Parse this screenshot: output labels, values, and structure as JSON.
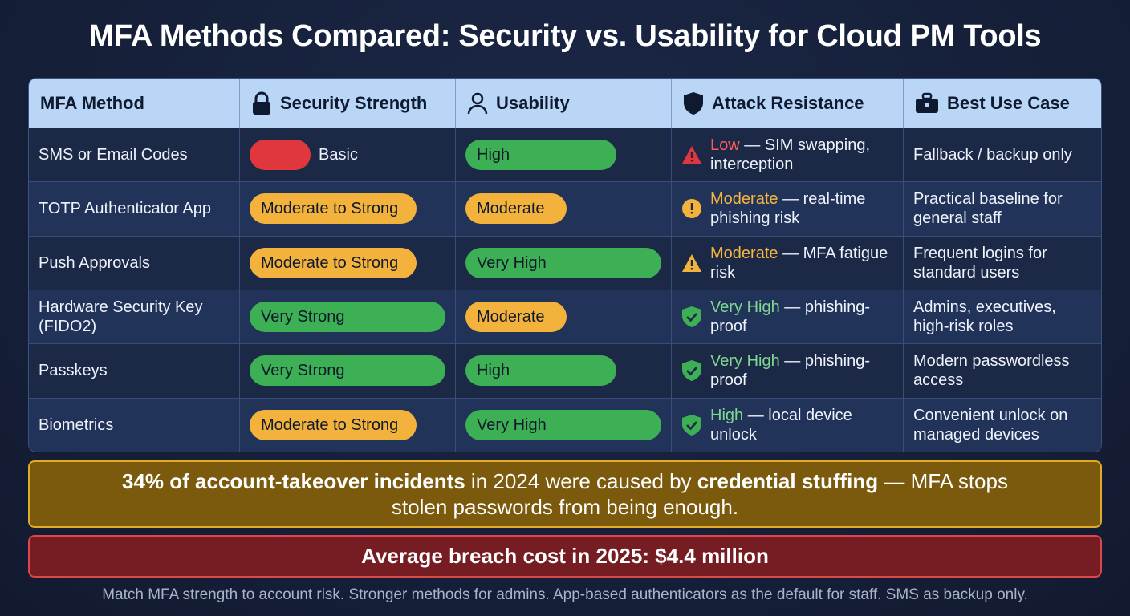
{
  "title": "MFA Methods Compared: Security vs. Usability for Cloud PM Tools",
  "table": {
    "headers": [
      "MFA Method",
      "Security Strength",
      "Usability",
      "Attack Resistance",
      "Best Use Case"
    ],
    "rows": [
      {
        "method": "SMS or Email Codes",
        "security": "Basic",
        "usability": "High",
        "resistance": {
          "level": "Low",
          "detail": "— SIM swapping, interception"
        },
        "use_case": "Fallback / backup only"
      },
      {
        "method": "TOTP Authenticator App",
        "security": "Moderate to Strong",
        "usability": "Moderate",
        "resistance": {
          "level": "Moderate",
          "detail": "— real-time phishing risk"
        },
        "use_case": "Practical baseline for general staff"
      },
      {
        "method": "Push Approvals",
        "security": "Moderate to Strong",
        "usability": "Very High",
        "resistance": {
          "level": "Moderate",
          "detail": "— MFA fatigue risk"
        },
        "use_case": "Frequent logins for standard users"
      },
      {
        "method": "Hardware Security Key (FIDO2)",
        "security": "Very Strong",
        "usability": "Moderate",
        "resistance": {
          "level": "Very High",
          "detail": "— phishing-proof"
        },
        "use_case": "Admins, executives, high-risk roles"
      },
      {
        "method": "Passkeys",
        "security": "Very Strong",
        "usability": "High",
        "resistance": {
          "level": "Very High",
          "detail": "— phishing-proof"
        },
        "use_case": "Modern passwordless access"
      },
      {
        "method": "Biometrics",
        "security": "Moderate to Strong",
        "usability": "Very High",
        "resistance": {
          "level": "High",
          "detail": "— local device unlock"
        },
        "use_case": "Convenient unlock on managed devices"
      }
    ]
  },
  "callout": {
    "parts": [
      {
        "text": "34% of account-takeover incidents",
        "bold": true
      },
      {
        "text": " in 2024 were caused by ",
        "bold": false
      },
      {
        "text": "credential stuffing",
        "bold": true
      },
      {
        "text": " — MFA stops stolen passwords from being enough.",
        "bold": false
      }
    ]
  },
  "cost_banner": "Average breach cost in 2025: $4.4 million",
  "footer": "Match MFA strength to account risk. Stronger methods for admins. App-based authenticators as the default for staff. SMS as backup only."
}
